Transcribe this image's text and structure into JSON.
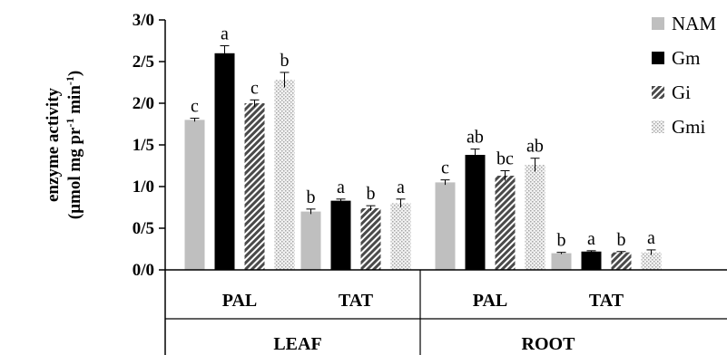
{
  "chart_data": {
    "type": "bar",
    "ylabel_line1": "enzyme activity",
    "ylabel_line2_prefix": "(µmol mg pr",
    "ylabel_line2_sup1": "-1",
    "ylabel_line2_mid": " min",
    "ylabel_line2_sup2": "-1",
    "ylabel_line2_suffix": ")",
    "ylim": [
      0,
      3
    ],
    "yticks": [
      {
        "value": 0,
        "label": "0/0"
      },
      {
        "value": 0.5,
        "label": "0/5"
      },
      {
        "value": 1,
        "label": "1/0"
      },
      {
        "value": 1.5,
        "label": "1/5"
      },
      {
        "value": 2,
        "label": "2/0"
      },
      {
        "value": 2.5,
        "label": "2/5"
      },
      {
        "value": 3,
        "label": "3/0"
      }
    ],
    "categories": [
      "PAL",
      "TAT",
      "PAL",
      "TAT"
    ],
    "groups": [
      {
        "label": "LEAF",
        "categories": [
          0,
          1
        ]
      },
      {
        "label": "ROOT",
        "categories": [
          2,
          3
        ]
      }
    ],
    "series": [
      {
        "name": "NAM",
        "color": "#bfbfbf",
        "pattern": "solid",
        "values": [
          1.8,
          0.7,
          1.05,
          0.2
        ],
        "errors": [
          0.02,
          0.03,
          0.03,
          0.01
        ],
        "labels": [
          "c",
          "b",
          "c",
          "b"
        ]
      },
      {
        "name": "Gm",
        "color": "#000000",
        "pattern": "solid",
        "values": [
          2.6,
          0.83,
          1.38,
          0.22
        ],
        "errors": [
          0.09,
          0.02,
          0.07,
          0.01
        ],
        "labels": [
          "a",
          "a",
          "ab",
          "a"
        ]
      },
      {
        "name": "Gi",
        "color": "#555555",
        "pattern": "hatch",
        "values": [
          2.0,
          0.74,
          1.13,
          0.21
        ],
        "errors": [
          0.04,
          0.03,
          0.06,
          0.01
        ],
        "labels": [
          "c",
          "b",
          "bc",
          "b"
        ]
      },
      {
        "name": "Gmi",
        "color": "#d9d9d9",
        "pattern": "dots",
        "values": [
          2.28,
          0.8,
          1.26,
          0.21
        ],
        "errors": [
          0.09,
          0.05,
          0.08,
          0.03
        ],
        "labels": [
          "b",
          "a",
          "ab",
          "a"
        ]
      }
    ],
    "legend_position": "right",
    "grid": false
  }
}
